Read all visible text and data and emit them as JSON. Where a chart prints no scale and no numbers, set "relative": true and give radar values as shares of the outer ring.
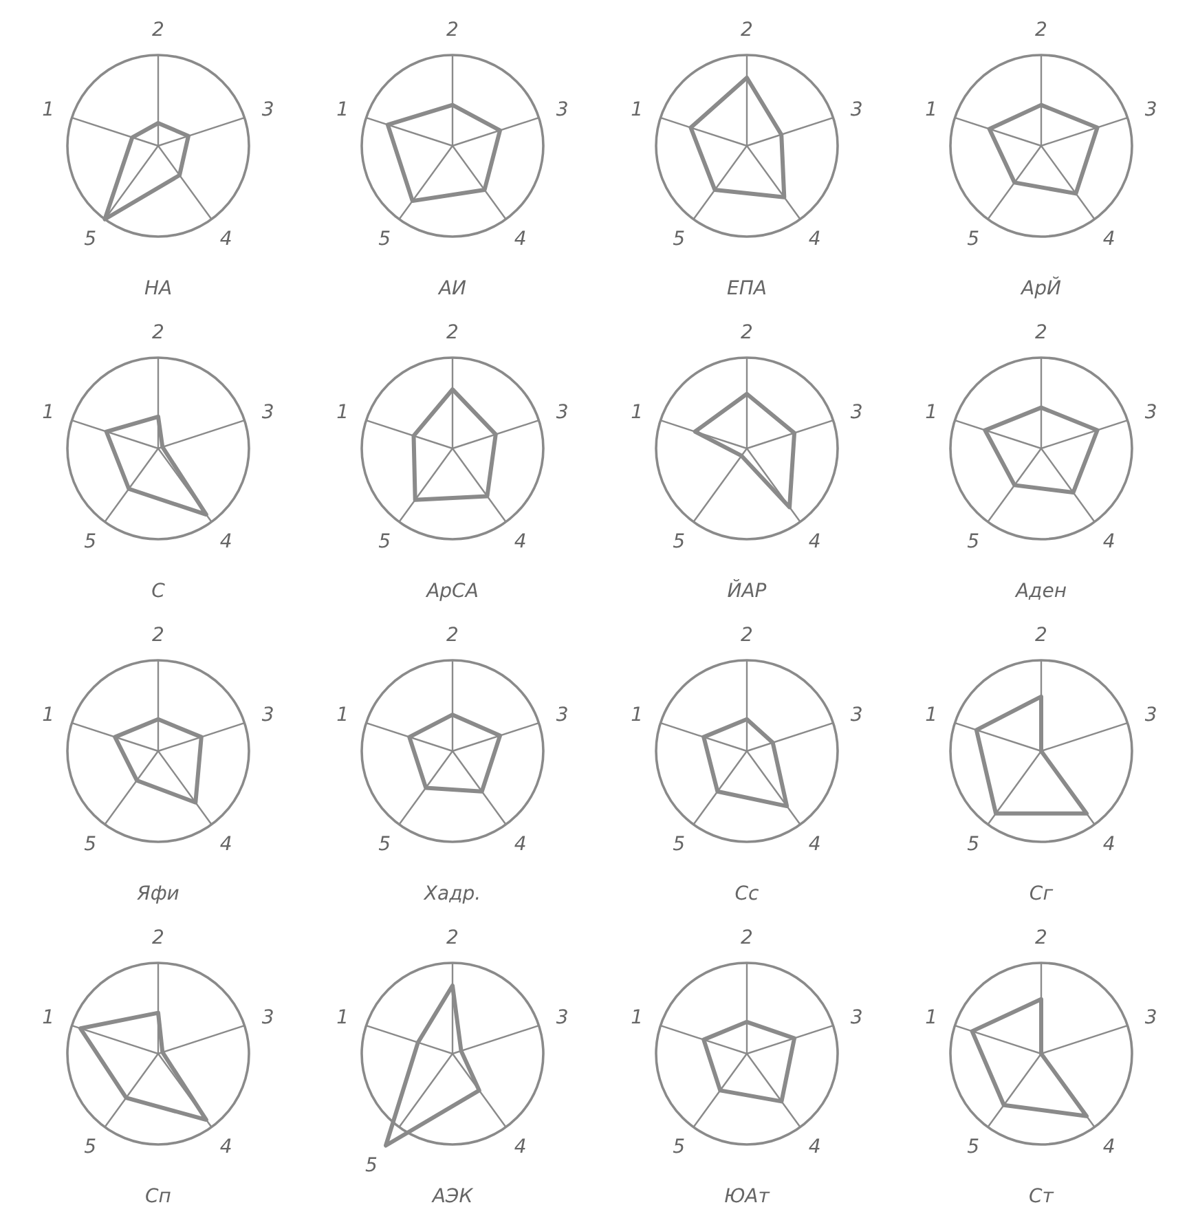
{
  "chart_data": [
    {
      "type": "radar",
      "title": "НА",
      "categories": [
        "2",
        "3",
        "4",
        "5",
        "1"
      ],
      "relative": true,
      "series": [
        {
          "color": "#8a8a8a",
          "values": [
            0.25,
            0.35,
            0.4,
            1.0,
            0.3
          ]
        }
      ]
    },
    {
      "type": "radar",
      "title": "АИ",
      "categories": [
        "2",
        "3",
        "4",
        "5",
        "1"
      ],
      "relative": true,
      "series": [
        {
          "color": "#8a8a8a",
          "values": [
            0.45,
            0.55,
            0.6,
            0.75,
            0.75
          ]
        }
      ]
    },
    {
      "type": "radar",
      "title": "ЕПА",
      "categories": [
        "2",
        "3",
        "4",
        "5",
        "1"
      ],
      "relative": true,
      "series": [
        {
          "color": "#8a8a8a",
          "values": [
            0.75,
            0.4,
            0.7,
            0.6,
            0.65
          ]
        }
      ]
    },
    {
      "type": "radar",
      "title": "АрЙ",
      "categories": [
        "2",
        "3",
        "4",
        "5",
        "1"
      ],
      "relative": true,
      "series": [
        {
          "color": "#8a8a8a",
          "values": [
            0.45,
            0.65,
            0.65,
            0.5,
            0.6
          ]
        }
      ]
    },
    {
      "type": "radar",
      "title": "С",
      "categories": [
        "2",
        "3",
        "4",
        "5",
        "1"
      ],
      "relative": true,
      "series": [
        {
          "color": "#8a8a8a",
          "values": [
            0.35,
            0.05,
            0.9,
            0.55,
            0.6
          ]
        }
      ]
    },
    {
      "type": "radar",
      "title": "АрСА",
      "categories": [
        "2",
        "3",
        "4",
        "5",
        "1"
      ],
      "relative": true,
      "series": [
        {
          "color": "#8a8a8a",
          "values": [
            0.65,
            0.5,
            0.65,
            0.7,
            0.45
          ]
        }
      ]
    },
    {
      "type": "radar",
      "title": "ЙАР",
      "categories": [
        "2",
        "3",
        "4",
        "5",
        "1"
      ],
      "relative": true,
      "series": [
        {
          "color": "#8a8a8a",
          "values": [
            0.6,
            0.55,
            0.8,
            0.1,
            0.6
          ]
        }
      ]
    },
    {
      "type": "radar",
      "title": "Аден",
      "categories": [
        "2",
        "3",
        "4",
        "5",
        "1"
      ],
      "relative": true,
      "series": [
        {
          "color": "#8a8a8a",
          "values": [
            0.45,
            0.65,
            0.6,
            0.5,
            0.65
          ]
        }
      ]
    },
    {
      "type": "radar",
      "title": "Яфи",
      "categories": [
        "2",
        "3",
        "4",
        "5",
        "1"
      ],
      "relative": true,
      "series": [
        {
          "color": "#8a8a8a",
          "values": [
            0.35,
            0.5,
            0.7,
            0.4,
            0.5
          ]
        }
      ]
    },
    {
      "type": "radar",
      "title": "Хадр.",
      "categories": [
        "2",
        "3",
        "4",
        "5",
        "1"
      ],
      "relative": true,
      "series": [
        {
          "color": "#8a8a8a",
          "values": [
            0.4,
            0.55,
            0.55,
            0.5,
            0.5
          ]
        }
      ]
    },
    {
      "type": "radar",
      "title": "Сс",
      "categories": [
        "2",
        "3",
        "4",
        "5",
        "1"
      ],
      "relative": true,
      "series": [
        {
          "color": "#8a8a8a",
          "values": [
            0.35,
            0.3,
            0.75,
            0.55,
            0.5
          ]
        }
      ]
    },
    {
      "type": "radar",
      "title": "Сг",
      "categories": [
        "2",
        "3",
        "4",
        "5",
        "1"
      ],
      "relative": true,
      "series": [
        {
          "color": "#8a8a8a",
          "values": [
            0.6,
            0,
            0.85,
            0.85,
            0.75
          ]
        }
      ]
    },
    {
      "type": "radar",
      "title": "Сп",
      "categories": [
        "2",
        "3",
        "4",
        "5",
        "1"
      ],
      "relative": true,
      "series": [
        {
          "color": "#8a8a8a",
          "values": [
            0.45,
            0.05,
            0.9,
            0.6,
            0.9
          ]
        }
      ]
    },
    {
      "type": "radar",
      "title": "АЭК",
      "categories": [
        "2",
        "3",
        "4",
        "5",
        "1"
      ],
      "relative": true,
      "series": [
        {
          "color": "#8a8a8a",
          "values": [
            0.75,
            0.1,
            0.5,
            1.25,
            0.4
          ]
        }
      ]
    },
    {
      "type": "radar",
      "title": "ЮАт",
      "categories": [
        "2",
        "3",
        "4",
        "5",
        "1"
      ],
      "relative": true,
      "series": [
        {
          "color": "#8a8a8a",
          "values": [
            0.35,
            0.55,
            0.65,
            0.5,
            0.5
          ]
        }
      ]
    },
    {
      "type": "radar",
      "title": "Ст",
      "categories": [
        "2",
        "3",
        "4",
        "5",
        "1"
      ],
      "relative": true,
      "series": [
        {
          "color": "#8a8a8a",
          "values": [
            0.6,
            0,
            0.85,
            0.7,
            0.8
          ]
        }
      ]
    }
  ]
}
